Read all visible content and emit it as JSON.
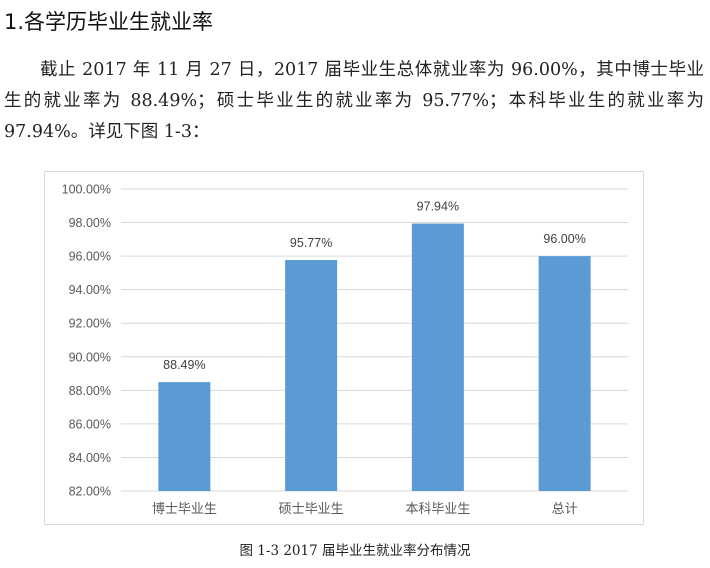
{
  "heading": "1.各学历毕业生就业率",
  "paragraph": "截止 2017 年 11 月 27 日，2017 届毕业生总体就业率为 96.00%，其中博士毕业生的就业率为 88.49%；硕士毕业生的就业率为 95.77%；本科毕业生的就业率为 97.94%。详见下图 1-3：",
  "caption": "图 1-3 2017 届毕业生就业率分布情况",
  "colors": {
    "bar": "#5b9bd5",
    "grid": "#d9d9d9",
    "axis_text": "#595959"
  },
  "chart_data": {
    "type": "bar",
    "categories": [
      "博士毕业生",
      "硕士毕业生",
      "本科毕业生",
      "总计"
    ],
    "values": [
      88.49,
      95.77,
      97.94,
      96.0
    ],
    "data_labels": [
      "88.49%",
      "95.77%",
      "97.94%",
      "96.00%"
    ],
    "yticks": [
      "82.00%",
      "84.00%",
      "86.00%",
      "88.00%",
      "90.00%",
      "92.00%",
      "94.00%",
      "96.00%",
      "98.00%",
      "100.00%"
    ],
    "ylim": [
      82,
      100
    ],
    "title": "",
    "xlabel": "",
    "ylabel": "",
    "grid": true,
    "legend": "none"
  }
}
